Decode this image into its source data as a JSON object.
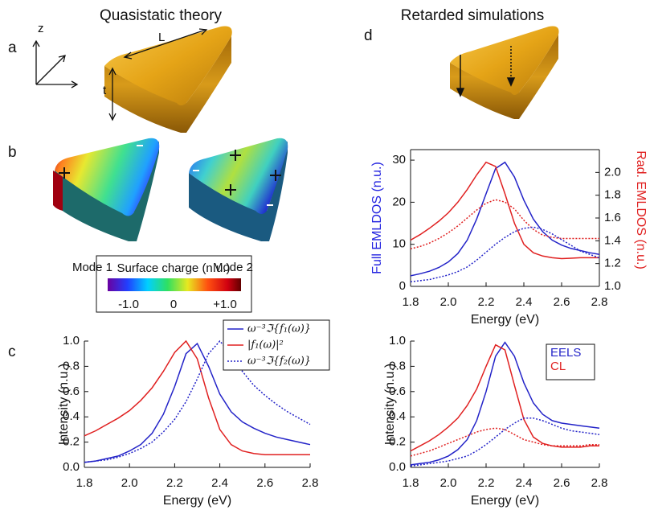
{
  "figure": {
    "titles": [
      "Quasistatic theory",
      "Retarded simulations"
    ],
    "panel_labels": [
      "a",
      "b",
      "c",
      "d"
    ],
    "geometry_labels": [
      "z",
      "L",
      "t"
    ],
    "modes": [
      "Mode 1",
      "Mode 2"
    ],
    "colorbar": {
      "title": "Surface charge (n.u.)",
      "tick_labels": [
        "-1.0",
        "0",
        "+1.0"
      ]
    }
  },
  "chart_data": [
    {
      "type": "line",
      "xlabel": "Energy (eV)",
      "ylabel": "Intensity (n.u.)",
      "x": [
        1.8,
        1.85,
        1.9,
        1.95,
        2.0,
        2.05,
        2.1,
        2.15,
        2.2,
        2.25,
        2.3,
        2.35,
        2.4,
        2.45,
        2.5,
        2.55,
        2.6,
        2.65,
        2.7,
        2.75,
        2.8
      ],
      "xlim": [
        1.8,
        2.8
      ],
      "ylim": [
        0,
        1
      ],
      "xticks": [
        1.8,
        {
          "value": 2,
          "label": "2.0"
        },
        2.2,
        2.4,
        2.6,
        2.8
      ],
      "yticks": [
        {
          "value": 0,
          "label": "0.0"
        },
        0.2,
        0.4,
        0.6,
        0.8,
        {
          "value": 1,
          "label": "1.0"
        }
      ],
      "legend": "upper right",
      "series": [
        {
          "name": "ω⁻³ℑ{f₁(ω)}",
          "color": "#2323c8",
          "dash": "solid",
          "values": [
            0.04,
            0.05,
            0.07,
            0.09,
            0.13,
            0.18,
            0.27,
            0.42,
            0.64,
            0.9,
            0.98,
            0.8,
            0.58,
            0.44,
            0.36,
            0.31,
            0.27,
            0.24,
            0.22,
            0.2,
            0.18
          ]
        },
        {
          "name": "|f₁(ω)|²",
          "color": "#e02020",
          "dash": "solid",
          "values": [
            0.25,
            0.29,
            0.34,
            0.39,
            0.45,
            0.53,
            0.63,
            0.76,
            0.91,
            1.0,
            0.86,
            0.55,
            0.3,
            0.18,
            0.13,
            0.11,
            0.1,
            0.1,
            0.1,
            0.1,
            0.1
          ]
        },
        {
          "name": "ω⁻³ℑ{f₂(ω)}",
          "color": "#2323c8",
          "dash": "dotted",
          "values": [
            0.04,
            0.05,
            0.06,
            0.08,
            0.11,
            0.15,
            0.2,
            0.28,
            0.38,
            0.52,
            0.7,
            0.9,
            1.0,
            0.9,
            0.76,
            0.65,
            0.57,
            0.5,
            0.44,
            0.39,
            0.34
          ]
        }
      ]
    },
    {
      "type": "line",
      "xlabel": "Energy (eV)",
      "ylabel": "Full EMLDOS (n.u.)",
      "ylabel_color": "#2323e0",
      "y2label": "Rad. EMLDOS (n.u.)",
      "y2label_color": "#e02020",
      "x": [
        1.8,
        1.85,
        1.9,
        1.95,
        2.0,
        2.05,
        2.1,
        2.15,
        2.2,
        2.25,
        2.3,
        2.35,
        2.4,
        2.45,
        2.5,
        2.55,
        2.6,
        2.65,
        2.7,
        2.75,
        2.8
      ],
      "xlim": [
        1.8,
        2.8
      ],
      "ylim": [
        0,
        32.5
      ],
      "y2lim": [
        1.0,
        2.2
      ],
      "xticks": [
        1.8,
        {
          "value": 2,
          "label": "2.0"
        },
        2.2,
        2.4,
        2.6,
        2.8
      ],
      "yticks": [
        0,
        10,
        20,
        30
      ],
      "y2ticks": [
        {
          "value": 1,
          "label": "1.0"
        },
        1.2,
        1.4,
        1.6,
        1.8,
        {
          "value": 2,
          "label": "2.0"
        }
      ],
      "series": [
        {
          "color": "#2323c8",
          "dash": "solid",
          "axis": "y",
          "values": [
            2.5,
            3,
            3.6,
            4.5,
            5.8,
            7.8,
            11,
            16,
            22,
            28,
            29.5,
            26,
            20.5,
            16,
            13,
            11,
            9.8,
            9,
            8.5,
            8,
            7.6
          ]
        },
        {
          "color": "#e02020",
          "dash": "solid",
          "axis": "y",
          "values": [
            11,
            12.3,
            13.8,
            15.5,
            17.5,
            20,
            23,
            26.5,
            29.5,
            28.5,
            22,
            15,
            10,
            8,
            7.2,
            6.8,
            6.6,
            6.7,
            6.8,
            6.8,
            6.8
          ]
        },
        {
          "color": "#e02020",
          "dash": "dotted",
          "axis": "y2",
          "values": [
            1.33,
            1.35,
            1.38,
            1.42,
            1.47,
            1.53,
            1.6,
            1.67,
            1.73,
            1.76,
            1.74,
            1.68,
            1.58,
            1.5,
            1.45,
            1.43,
            1.42,
            1.42,
            1.42,
            1.42,
            1.42
          ]
        },
        {
          "color": "#2323c8",
          "dash": "dotted",
          "axis": "y2",
          "values": [
            1.04,
            1.05,
            1.06,
            1.08,
            1.1,
            1.13,
            1.17,
            1.23,
            1.3,
            1.37,
            1.43,
            1.48,
            1.51,
            1.52,
            1.5,
            1.46,
            1.41,
            1.36,
            1.31,
            1.28,
            1.25
          ]
        }
      ]
    },
    {
      "type": "line",
      "xlabel": "Energy (eV)",
      "ylabel": "Intensity (n.u.)",
      "x": [
        1.8,
        1.85,
        1.9,
        1.95,
        2.0,
        2.05,
        2.1,
        2.15,
        2.2,
        2.25,
        2.3,
        2.35,
        2.4,
        2.45,
        2.5,
        2.55,
        2.6,
        2.65,
        2.7,
        2.75,
        2.8
      ],
      "xlim": [
        1.8,
        2.8
      ],
      "ylim": [
        0,
        1
      ],
      "xticks": [
        1.8,
        {
          "value": 2,
          "label": "2.0"
        },
        2.2,
        2.4,
        2.6,
        2.8
      ],
      "yticks": [
        {
          "value": 0,
          "label": "0.0"
        },
        0.2,
        0.4,
        0.6,
        0.8,
        {
          "value": 1,
          "label": "1.0"
        }
      ],
      "legend": "upper right",
      "series": [
        {
          "name": "EELS",
          "color": "#2323c8",
          "dash": "solid",
          "values": [
            0.02,
            0.03,
            0.04,
            0.06,
            0.09,
            0.14,
            0.22,
            0.37,
            0.6,
            0.88,
            0.99,
            0.88,
            0.67,
            0.51,
            0.42,
            0.37,
            0.35,
            0.34,
            0.33,
            0.32,
            0.31
          ]
        },
        {
          "name": "CL",
          "color": "#e02020",
          "dash": "solid",
          "values": [
            0.13,
            0.17,
            0.21,
            0.26,
            0.32,
            0.39,
            0.49,
            0.62,
            0.8,
            0.97,
            0.93,
            0.65,
            0.38,
            0.24,
            0.19,
            0.17,
            0.16,
            0.16,
            0.16,
            0.17,
            0.17
          ]
        },
        {
          "color": "#e02020",
          "dash": "dotted",
          "values": [
            0.09,
            0.11,
            0.13,
            0.16,
            0.19,
            0.22,
            0.25,
            0.28,
            0.3,
            0.31,
            0.3,
            0.26,
            0.22,
            0.2,
            0.18,
            0.17,
            0.17,
            0.17,
            0.17,
            0.18,
            0.18
          ]
        },
        {
          "color": "#2323c8",
          "dash": "dotted",
          "values": [
            0.01,
            0.02,
            0.03,
            0.04,
            0.05,
            0.07,
            0.09,
            0.13,
            0.18,
            0.24,
            0.3,
            0.35,
            0.39,
            0.39,
            0.37,
            0.34,
            0.31,
            0.29,
            0.28,
            0.27,
            0.26
          ]
        }
      ]
    }
  ]
}
